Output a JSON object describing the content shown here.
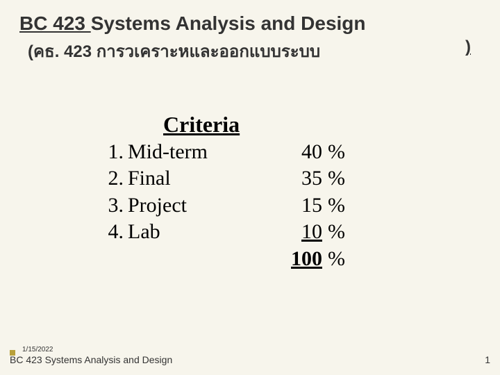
{
  "title": {
    "code": "BC 423 ",
    "rest": "Systems Analysis and Design",
    "subtitle_main": "(คธ. 423 การวเคราะหและออกแบบระบบ",
    "subtitle_close": ")"
  },
  "criteria": {
    "heading": "Criteria",
    "rows": [
      {
        "num": "1.",
        "label": "Mid-term",
        "value": "40",
        "pct": "%"
      },
      {
        "num": "2.",
        "label": "Final",
        "value": "35",
        "pct": "%"
      },
      {
        "num": "3.",
        "label": "Project",
        "value": "15",
        "pct": "%"
      },
      {
        "num": "4.",
        "label": " Lab",
        "value": " 10",
        "pct": "%"
      }
    ],
    "total": {
      "value": "100",
      "pct": "%"
    }
  },
  "footer": {
    "date": "1/15/2022",
    "course": "BC 423 Systems Analysis and Design",
    "page": "1"
  },
  "colors": {
    "background": "#f7f5ec",
    "text": "#333333",
    "accent": "#b8a03a"
  }
}
